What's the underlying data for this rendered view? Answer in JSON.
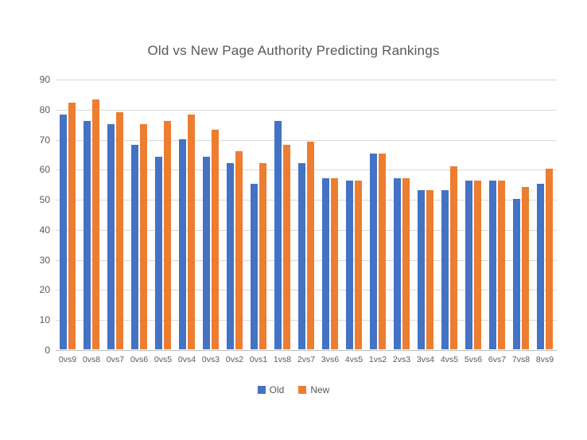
{
  "colors": {
    "old_series": "#4472C4",
    "new_series": "#ED7D31",
    "gridline": "#D9D9D9",
    "axis_text": "#595959",
    "title_text": "#595959",
    "background": "#FFFFFF"
  },
  "chart_data": {
    "type": "bar",
    "title": "Old vs New Page Authority Predicting Rankings",
    "categories": [
      "0vs9",
      "0vs8",
      "0vs7",
      "0vs6",
      "0vs5",
      "0vs4",
      "0vs3",
      "0vs2",
      "0vs1",
      "1vs8",
      "2vs7",
      "3vs6",
      "4vs5",
      "1vs2",
      "2vs3",
      "3vs4",
      "4vs5",
      "5vs6",
      "6vs7",
      "7vs8",
      "8vs9"
    ],
    "series": [
      {
        "name": "Old",
        "color": "#4472C4",
        "values": [
          78,
          76,
          75,
          68,
          64,
          70,
          64,
          62,
          55,
          76,
          62,
          57,
          56,
          65,
          57,
          53,
          53,
          56,
          56,
          50,
          55
        ]
      },
      {
        "name": "New",
        "color": "#ED7D31",
        "values": [
          82,
          83,
          79,
          75,
          76,
          78,
          73,
          66,
          62,
          68,
          69,
          57,
          56,
          65,
          57,
          53,
          61,
          56,
          56,
          54,
          60
        ]
      }
    ],
    "xlabel": "",
    "ylabel": "",
    "ylim": [
      0,
      90
    ],
    "yticks": [
      0,
      10,
      20,
      30,
      40,
      50,
      60,
      70,
      80,
      90
    ],
    "grid": true,
    "legend_position": "bottom"
  }
}
